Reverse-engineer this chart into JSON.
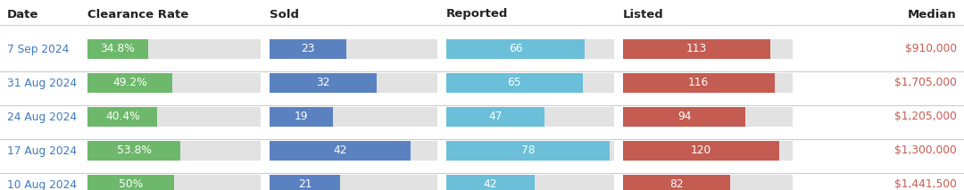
{
  "headers": [
    "Date",
    "Clearance Rate",
    "Sold",
    "Reported",
    "Listed",
    "Median"
  ],
  "rows": [
    {
      "date": "7 Sep 2024",
      "clearance_rate": 34.8,
      "clearance_label": "34.8%",
      "sold": 23,
      "reported": 66,
      "listed": 113,
      "median": "$910,000"
    },
    {
      "date": "31 Aug 2024",
      "clearance_rate": 49.2,
      "clearance_label": "49.2%",
      "sold": 32,
      "reported": 65,
      "listed": 116,
      "median": "$1,705,000"
    },
    {
      "date": "24 Aug 2024",
      "clearance_rate": 40.4,
      "clearance_label": "40.4%",
      "sold": 19,
      "reported": 47,
      "listed": 94,
      "median": "$1,205,000"
    },
    {
      "date": "17 Aug 2024",
      "clearance_rate": 53.8,
      "clearance_label": "53.8%",
      "sold": 42,
      "reported": 78,
      "listed": 120,
      "median": "$1,300,000"
    },
    {
      "date": "10 Aug 2024",
      "clearance_rate": 50.0,
      "clearance_label": "50%",
      "sold": 21,
      "reported": 42,
      "listed": 82,
      "median": "$1,441,500"
    }
  ],
  "max_clearance": 100,
  "max_sold": 50,
  "max_reported": 80,
  "max_listed": 130,
  "color_clearance": "#6db86b",
  "color_sold": "#5b82c0",
  "color_reported": "#6bbfd9",
  "color_listed": "#c45c52",
  "color_bg_bar": "#e2e2e2",
  "color_header_text": "#222222",
  "color_date_text": "#3f7abf",
  "color_bar_text": "#ffffff",
  "color_median_text": "#c45c52",
  "color_row_bg": "#ffffff",
  "color_sep_line": "#cccccc",
  "header_fontsize": 9.5,
  "data_fontsize": 8.8
}
